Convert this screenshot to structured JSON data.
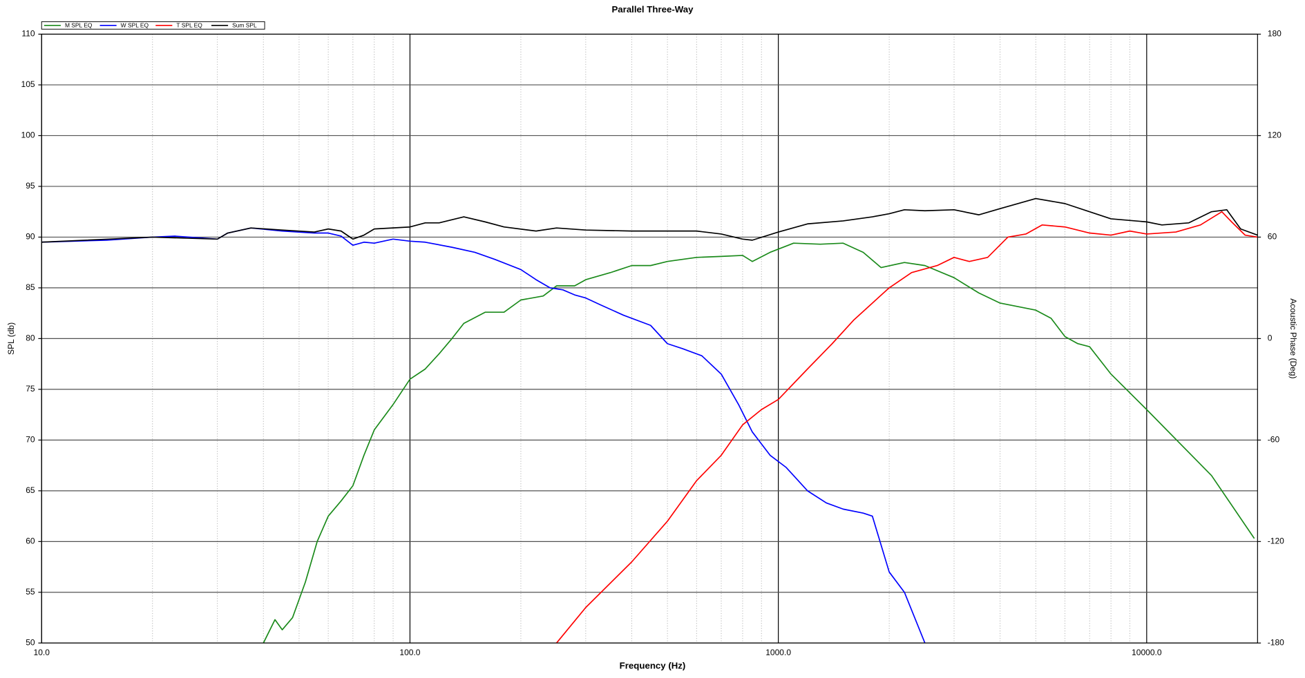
{
  "chart_data": {
    "type": "line",
    "title": "Parallel Three-Way",
    "x_label": "Frequency (Hz)",
    "y_label": "SPL (db)",
    "y2_label": "Acoustic Phase (Deg)",
    "xscale": "log",
    "grid": true,
    "legend": "top-left",
    "xlim": [
      10,
      20000
    ],
    "xticks": [
      {
        "value": 10,
        "label": "10.0"
      },
      {
        "value": 100,
        "label": "100.0"
      },
      {
        "value": 1000,
        "label": "1000.0"
      },
      {
        "value": 10000,
        "label": "10000.0"
      }
    ],
    "minor_xticks": [
      20,
      30,
      40,
      50,
      60,
      70,
      80,
      90,
      200,
      300,
      400,
      500,
      600,
      700,
      800,
      900,
      2000,
      3000,
      4000,
      5000,
      6000,
      7000,
      8000,
      9000
    ],
    "ylim": [
      50,
      110
    ],
    "yticks": [
      50,
      55,
      60,
      65,
      70,
      75,
      80,
      85,
      90,
      95,
      100,
      105,
      110
    ],
    "y2lim": [
      -180,
      180
    ],
    "y2ticks": [
      -180,
      -120,
      -60,
      0,
      60,
      120,
      180
    ],
    "series": [
      {
        "name": "M SPL EQ",
        "color": "#1a8a1a",
        "x": [
          40,
          43,
          45,
          48,
          52,
          56,
          60,
          65,
          70,
          75,
          80,
          90,
          100,
          110,
          120,
          130,
          140,
          160,
          180,
          200,
          230,
          250,
          280,
          300,
          350,
          400,
          450,
          500,
          600,
          700,
          800,
          850,
          950,
          1100,
          1300,
          1500,
          1700,
          1900,
          2200,
          2500,
          3000,
          3500,
          4000,
          5000,
          5500,
          6000,
          6500,
          7000,
          8000,
          10000,
          15000,
          19600
        ],
        "values": [
          50,
          52.3,
          51.3,
          52.5,
          56,
          60,
          62.5,
          64,
          65.5,
          68.5,
          71,
          73.5,
          76,
          77,
          78.5,
          80,
          81.5,
          82.6,
          82.6,
          83.8,
          84.2,
          85.2,
          85.2,
          85.8,
          86.5,
          87.2,
          87.2,
          87.6,
          88.0,
          88.1,
          88.2,
          87.6,
          88.5,
          89.4,
          89.3,
          89.4,
          88.5,
          87.0,
          87.5,
          87.2,
          86.0,
          84.5,
          83.5,
          82.8,
          82.0,
          80.2,
          79.5,
          79.2,
          76.5,
          73.0,
          66.5,
          60.3
        ]
      },
      {
        "name": "W SPL EQ",
        "color": "#0000ff",
        "x": [
          10,
          15,
          20,
          23,
          30,
          32,
          37,
          45,
          55,
          60,
          65,
          70,
          75,
          80,
          90,
          100,
          110,
          130,
          150,
          170,
          200,
          220,
          240,
          260,
          280,
          300,
          330,
          380,
          450,
          500,
          550,
          620,
          700,
          780,
          850,
          950,
          1050,
          1200,
          1350,
          1500,
          1700,
          1800,
          2000,
          2200,
          2500
        ],
        "values": [
          89.5,
          89.7,
          90,
          90.1,
          89.8,
          90.4,
          90.9,
          90.6,
          90.4,
          90.4,
          90.1,
          89.2,
          89.5,
          89.4,
          89.8,
          89.6,
          89.5,
          89.0,
          88.5,
          87.8,
          86.8,
          85.8,
          85.0,
          84.8,
          84.3,
          84.0,
          83.3,
          82.3,
          81.3,
          79.5,
          79.0,
          78.3,
          76.5,
          73.5,
          70.8,
          68.5,
          67.3,
          65.0,
          63.8,
          63.2,
          62.8,
          62.5,
          57.0,
          55.0,
          50.0
        ]
      },
      {
        "name": "T SPL EQ",
        "color": "#ff0000",
        "x": [
          250,
          300,
          400,
          500,
          600,
          700,
          800,
          900,
          1000,
          1200,
          1400,
          1600,
          1800,
          2000,
          2300,
          2700,
          3000,
          3300,
          3700,
          4200,
          4700,
          5200,
          6000,
          7000,
          8000,
          9000,
          10000,
          12000,
          14000,
          16000,
          17000,
          18500,
          20000
        ],
        "values": [
          50,
          53.5,
          58,
          62,
          66,
          68.5,
          71.5,
          73,
          74,
          77,
          79.5,
          81.8,
          83.5,
          85,
          86.5,
          87.2,
          88,
          87.6,
          88.0,
          90,
          90.3,
          91.2,
          91.0,
          90.4,
          90.2,
          90.6,
          90.3,
          90.5,
          91.2,
          92.5,
          91.5,
          90.2,
          90.0
        ]
      },
      {
        "name": "Sum SPL",
        "color": "#000000",
        "x": [
          10,
          20,
          30,
          32,
          37,
          45,
          55,
          60,
          65,
          70,
          75,
          80,
          100,
          110,
          120,
          140,
          160,
          180,
          220,
          250,
          300,
          400,
          500,
          600,
          700,
          800,
          850,
          1000,
          1200,
          1500,
          1800,
          2000,
          2200,
          2500,
          3000,
          3500,
          4000,
          5000,
          6000,
          7000,
          8000,
          10000,
          11000,
          13000,
          15000,
          16500,
          18000,
          20000
        ],
        "values": [
          89.5,
          90.0,
          89.8,
          90.4,
          90.9,
          90.7,
          90.5,
          90.8,
          90.6,
          89.8,
          90.2,
          90.8,
          91.0,
          91.4,
          91.4,
          92.0,
          91.5,
          91.0,
          90.6,
          90.9,
          90.7,
          90.6,
          90.6,
          90.6,
          90.3,
          89.8,
          89.7,
          90.5,
          91.3,
          91.6,
          92.0,
          92.3,
          92.7,
          92.6,
          92.7,
          92.2,
          92.8,
          93.8,
          93.3,
          92.5,
          91.8,
          91.5,
          91.2,
          91.4,
          92.5,
          92.7,
          90.8,
          90.2
        ]
      }
    ]
  }
}
